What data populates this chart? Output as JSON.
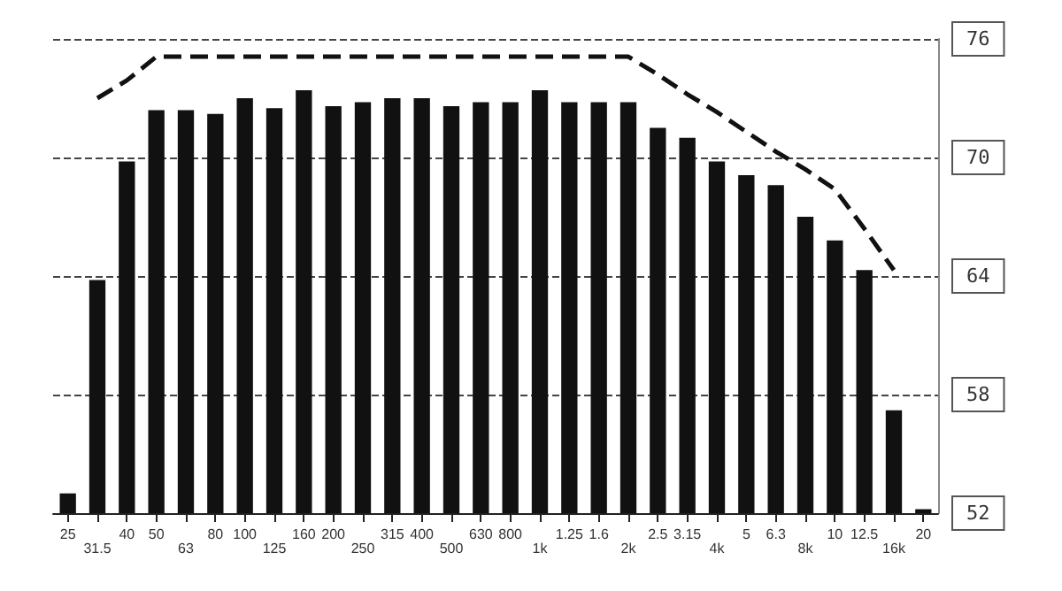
{
  "chart_data": {
    "type": "bar",
    "categories": [
      "25",
      "31.5",
      "40",
      "50",
      "63",
      "80",
      "100",
      "125",
      "160",
      "200",
      "250",
      "315",
      "400",
      "500",
      "630",
      "800",
      "1k",
      "1.25",
      "1.6",
      "2k",
      "2.5",
      "3.15",
      "4k",
      "5",
      "6.3",
      "8k",
      "10",
      "12.5",
      "16k",
      "20"
    ],
    "series": [
      {
        "color": "#111111",
        "values": [
          53.0,
          63.8,
          69.8,
          72.4,
          72.4,
          72.2,
          73.0,
          72.5,
          73.4,
          72.6,
          72.8,
          73.0,
          73.0,
          72.6,
          72.8,
          72.8,
          73.4,
          72.8,
          72.8,
          72.8,
          71.5,
          71.0,
          69.8,
          69.1,
          68.6,
          67.0,
          65.8,
          64.3,
          57.2,
          52.2
        ]
      },
      {
        "type": "line",
        "color": "#111111",
        "line_style": "dashed",
        "values": [
          null,
          73.0,
          73.9,
          75.1,
          75.1,
          75.1,
          75.1,
          75.1,
          75.1,
          75.1,
          75.1,
          75.1,
          75.1,
          75.1,
          75.1,
          75.1,
          75.1,
          75.1,
          75.1,
          75.1,
          74.2,
          73.2,
          72.3,
          71.3,
          70.3,
          69.4,
          68.4,
          66.4,
          64.3,
          null
        ]
      }
    ],
    "ylim": [
      52,
      76
    ],
    "yticks": [
      52,
      58,
      64,
      70,
      76
    ],
    "grid": "y"
  }
}
